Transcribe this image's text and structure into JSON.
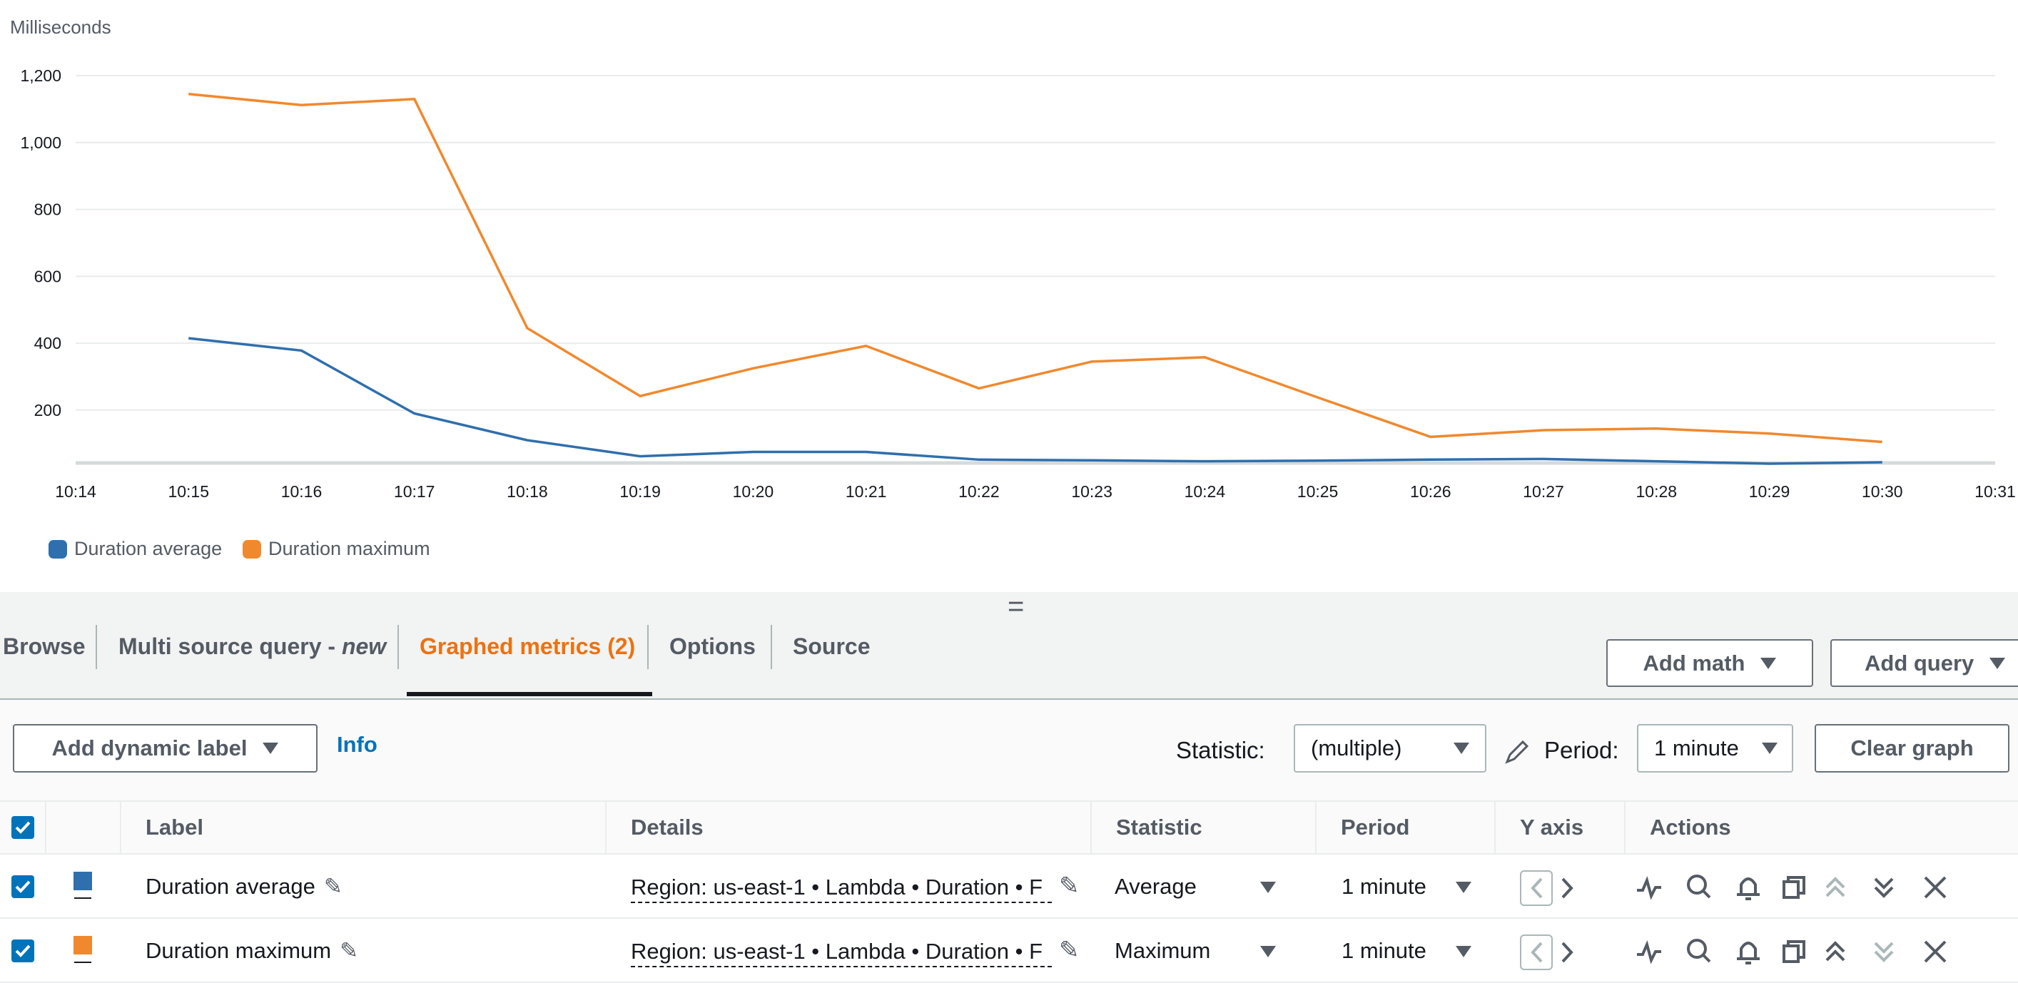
{
  "chart_data": {
    "type": "line",
    "y_label": "Milliseconds",
    "categories": [
      "10:14",
      "10:15",
      "10:16",
      "10:17",
      "10:18",
      "10:19",
      "10:20",
      "10:21",
      "10:22",
      "10:23",
      "10:24",
      "10:25",
      "10:26",
      "10:27",
      "10:28",
      "10:29",
      "10:30",
      "10:31"
    ],
    "series": [
      {
        "name": "Duration average",
        "color": "#2f6fad",
        "values": [
          null,
          415,
          378,
          190,
          110,
          62,
          75,
          75,
          52,
          50,
          47,
          49,
          52,
          54,
          47,
          40,
          44,
          null
        ]
      },
      {
        "name": "Duration maximum",
        "color": "#f0892e",
        "values": [
          null,
          1145,
          1112,
          1130,
          445,
          242,
          325,
          392,
          265,
          345,
          358,
          238,
          120,
          140,
          145,
          130,
          105,
          null
        ]
      }
    ],
    "ylim": [
      42,
      1200
    ],
    "yticks": [
      200,
      400,
      600,
      800,
      {
        "value": 1000,
        "label": "1,000"
      },
      {
        "value": 1200,
        "label": "1,200"
      }
    ],
    "grid": true
  },
  "tabs": {
    "browse": "Browse",
    "multi": "Multi source query - ",
    "multi_new": "new",
    "graphed": "Graphed metrics (2)",
    "options": "Options",
    "source": "Source"
  },
  "buttons": {
    "add_math": "Add math",
    "add_query": "Add query",
    "add_label": "Add dynamic label",
    "info": "Info",
    "statistic": "Statistic:",
    "statistic_value": "(multiple)",
    "period": "Period:",
    "period_value": "1 minute",
    "clear": "Clear graph"
  },
  "table": {
    "headers": [
      "Label",
      "Details",
      "Statistic",
      "Period",
      "Y axis",
      "Actions"
    ],
    "rows": [
      {
        "label": "Duration average",
        "details": "Region: us-east-1 • Lambda • Duration • F",
        "statistic": "Average",
        "period": "1 minute"
      },
      {
        "label": "Duration maximum",
        "details": "Region: us-east-1 • Lambda • Duration • F",
        "statistic": "Maximum",
        "period": "1 minute"
      }
    ]
  }
}
